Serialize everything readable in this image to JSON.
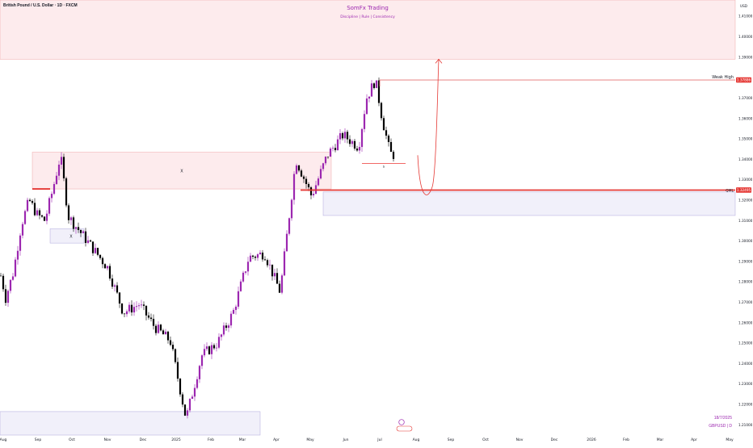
{
  "header": {
    "symbol_line": "British Pound / U.S. Dollar · 1D · FXCM"
  },
  "branding": {
    "title": "SomFx Trading",
    "subtitle": "Discipline | Rule | Consistency"
  },
  "watermark": {
    "date": "18/7/2025",
    "symbol": "GBPUSD | D"
  },
  "price_axis": {
    "currency": "USD",
    "ticks": [
      "1.41000",
      "1.40000",
      "1.39000",
      "1.37000",
      "1.36000",
      "1.35000",
      "1.34000",
      "1.33000",
      "1.32000",
      "1.31000",
      "1.30000",
      "1.29000",
      "1.28000",
      "1.27000",
      "1.26000",
      "1.25000",
      "1.24000",
      "1.23000",
      "1.22000",
      "1.21000"
    ]
  },
  "time_axis": {
    "labels": [
      "Aug",
      "Sep",
      "Oct",
      "Nov",
      "Dec",
      "2025",
      "Feb",
      "Mar",
      "Apr",
      "May",
      "Jun",
      "Jul",
      "Aug",
      "Sep",
      "Oct",
      "Nov",
      "Dec",
      "2026",
      "Feb",
      "Mar",
      "Apr",
      "May"
    ]
  },
  "annotations": {
    "weak_high_label": "Weak High",
    "weak_high_price": "1.37886",
    "qml_label": "QML",
    "qml_price": "1.32495",
    "zone_marker_1": "X",
    "zone_marker_2": "X",
    "sweep_marker": "$",
    "event_icon": "flag-icon"
  },
  "colors": {
    "bull": "#9c27b0",
    "bear": "#000000",
    "supply_zone": "#f8c7cc",
    "demand_zone": "#d7d4f0",
    "qml_line": "#e53935",
    "weak_high_line": "#e57373",
    "text_purple": "#9c27b0"
  },
  "chart_data": {
    "type": "candlestick",
    "title": "British Pound / U.S. Dollar · 1D · FXCM",
    "ylim": [
      1.205,
      1.418
    ],
    "unit": "USD",
    "series": [
      {
        "values": [
          {
            "date": "2024-08-01",
            "close": 1.283
          },
          {
            "date": "2024-08-05",
            "close": 1.272
          },
          {
            "date": "2024-08-12",
            "close": 1.285
          },
          {
            "date": "2024-08-19",
            "close": 1.308
          },
          {
            "date": "2024-08-26",
            "close": 1.32
          },
          {
            "date": "2024-09-02",
            "close": 1.313
          },
          {
            "date": "2024-09-09",
            "close": 1.31
          },
          {
            "date": "2024-09-16",
            "close": 1.325
          },
          {
            "date": "2024-09-23",
            "close": 1.342
          },
          {
            "date": "2024-09-30",
            "close": 1.312
          },
          {
            "date": "2024-10-07",
            "close": 1.307
          },
          {
            "date": "2024-10-21",
            "close": 1.297
          },
          {
            "date": "2024-11-04",
            "close": 1.287
          },
          {
            "date": "2024-11-18",
            "close": 1.265
          },
          {
            "date": "2024-12-02",
            "close": 1.269
          },
          {
            "date": "2024-12-16",
            "close": 1.258
          },
          {
            "date": "2024-12-30",
            "close": 1.251
          },
          {
            "date": "2025-01-13",
            "close": 1.213
          },
          {
            "date": "2025-01-27",
            "close": 1.244
          },
          {
            "date": "2025-02-10",
            "close": 1.25
          },
          {
            "date": "2025-02-24",
            "close": 1.265
          },
          {
            "date": "2025-03-10",
            "close": 1.292
          },
          {
            "date": "2025-03-24",
            "close": 1.294
          },
          {
            "date": "2025-04-07",
            "close": 1.275
          },
          {
            "date": "2025-04-21",
            "close": 1.34
          },
          {
            "date": "2025-05-05",
            "close": 1.322
          },
          {
            "date": "2025-05-19",
            "close": 1.342
          },
          {
            "date": "2025-06-02",
            "close": 1.352
          },
          {
            "date": "2025-06-16",
            "close": 1.346
          },
          {
            "date": "2025-06-23",
            "close": 1.37
          },
          {
            "date": "2025-07-01",
            "close": 1.3789
          },
          {
            "date": "2025-07-07",
            "close": 1.36
          },
          {
            "date": "2025-07-14",
            "close": 1.343
          },
          {
            "date": "2025-07-18",
            "close": 1.342
          }
        ]
      }
    ],
    "levels": [
      {
        "label": "Weak High",
        "price": 1.37886
      },
      {
        "label": "QML",
        "price": 1.32495
      }
    ],
    "zones": [
      {
        "kind": "supply",
        "top": 1.418,
        "bottom": 1.389
      },
      {
        "kind": "supply",
        "top": 1.3435,
        "bottom": 1.3255
      },
      {
        "kind": "demand",
        "top": 1.324,
        "bottom": 1.3125
      },
      {
        "kind": "demand",
        "top": 1.306,
        "bottom": 1.299
      },
      {
        "kind": "demand",
        "top": 1.2165,
        "bottom": 1.205
      }
    ],
    "projection": {
      "from": 1.342,
      "via": 1.3245,
      "to": 1.389
    }
  }
}
